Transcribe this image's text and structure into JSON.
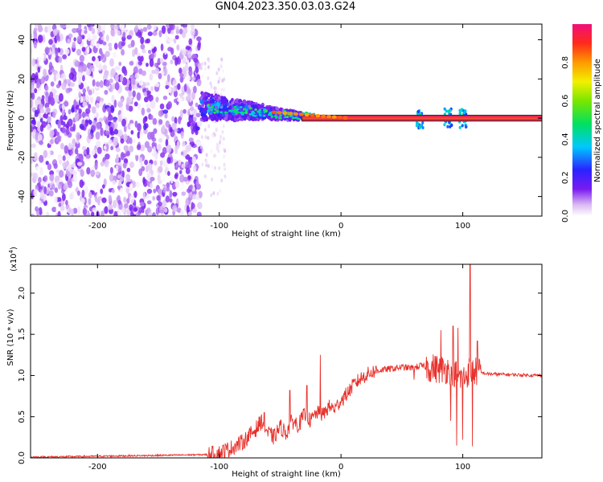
{
  "page": {
    "title": "GN04.2023.350.03.03.G24"
  },
  "colors": {
    "spectral_band_outline": "#2a2a2a",
    "spectral_band_fill": "#e8264b",
    "snr_line": "#e8302a"
  },
  "chart_data": [
    {
      "type": "heatmap",
      "title": "GN04.2023.350.03.03.G24",
      "xlabel": "Height of straight line (km)",
      "ylabel": "Frequency (Hz)",
      "xlim": [
        -255,
        165
      ],
      "ylim": [
        -50,
        48
      ],
      "x_ticks": [
        -200,
        -100,
        0,
        100
      ],
      "y_ticks": [
        -40,
        -20,
        0,
        20,
        40
      ],
      "colorbar": {
        "label": "Normalized spectral amplitude",
        "range": [
          0.0,
          1.0
        ],
        "ticks": [
          "0.0",
          "0.2",
          "0.4",
          "0.6",
          "0.8"
        ],
        "colormap": "white-purple-blue-cyan-green-yellow-orange-red-magenta"
      },
      "regions": [
        {
          "x_range": [
            -255,
            -115
          ],
          "description_values": {
            "frequency_spread": [
              -50,
              48
            ],
            "amplitude": [
              0.0,
              0.15
            ]
          }
        },
        {
          "x_range": [
            -115,
            -30
          ],
          "description_values": {
            "frequency_center": [
              2,
              5
            ],
            "amplitude": [
              0.1,
              0.45
            ]
          }
        },
        {
          "x_range": [
            -30,
            165
          ],
          "description_values": {
            "frequency_center": 0,
            "amplitude": [
              0.9,
              1.0
            ]
          }
        }
      ]
    },
    {
      "type": "line",
      "xlabel": "Height of straight line (km)",
      "ylabel": "SNR (10 * v/v)",
      "y_multiplier": "(x10",
      "y_multiplier_exp": "4",
      "xlim": [
        -255,
        165
      ],
      "ylim": [
        0.0,
        2.35
      ],
      "x_ticks": [
        -200,
        -100,
        0,
        100
      ],
      "y_ticks": [
        "0.0",
        "0.5",
        "1.0",
        "1.5",
        "2.0"
      ],
      "series": [
        {
          "x": [
            -255,
            -200,
            -150,
            -110,
            -100,
            -90,
            -80,
            -70,
            -65,
            -60,
            -55,
            -50,
            -45,
            -40,
            -35,
            -30,
            -25,
            -20,
            -15,
            -10,
            -5,
            0,
            5,
            10,
            15,
            20,
            25,
            30,
            40,
            50,
            60,
            65,
            70,
            80,
            90,
            100,
            105,
            110,
            120,
            140,
            165
          ],
          "y": [
            0.01,
            0.02,
            0.03,
            0.04,
            0.06,
            0.12,
            0.2,
            0.35,
            0.45,
            0.3,
            0.25,
            0.38,
            0.3,
            0.45,
            0.4,
            0.52,
            0.45,
            0.55,
            0.52,
            0.62,
            0.6,
            0.7,
            0.78,
            0.88,
            0.95,
            1.0,
            1.04,
            1.06,
            1.08,
            1.1,
            1.09,
            1.12,
            1.1,
            1.08,
            1.07,
            0.95,
            1.05,
            1.05,
            1.02,
            1.01,
            1.0
          ]
        }
      ],
      "peaks": [
        {
          "x": -17,
          "y": 1.25
        },
        {
          "x": -28,
          "y": 0.88
        },
        {
          "x": -42,
          "y": 0.82
        },
        {
          "x": -63,
          "y": 0.55
        },
        {
          "x": 60,
          "y": 0.95
        },
        {
          "x": 82,
          "y": 1.55
        },
        {
          "x": 92,
          "y": 1.6
        },
        {
          "x": 96,
          "y": 1.58
        },
        {
          "x": 106,
          "y": 2.35
        },
        {
          "x": 112,
          "y": 1.42
        }
      ],
      "dips": [
        {
          "x": 95,
          "y": 0.15
        },
        {
          "x": 100,
          "y": 0.22
        },
        {
          "x": 108,
          "y": 0.14
        },
        {
          "x": 90,
          "y": 0.45
        }
      ]
    }
  ]
}
